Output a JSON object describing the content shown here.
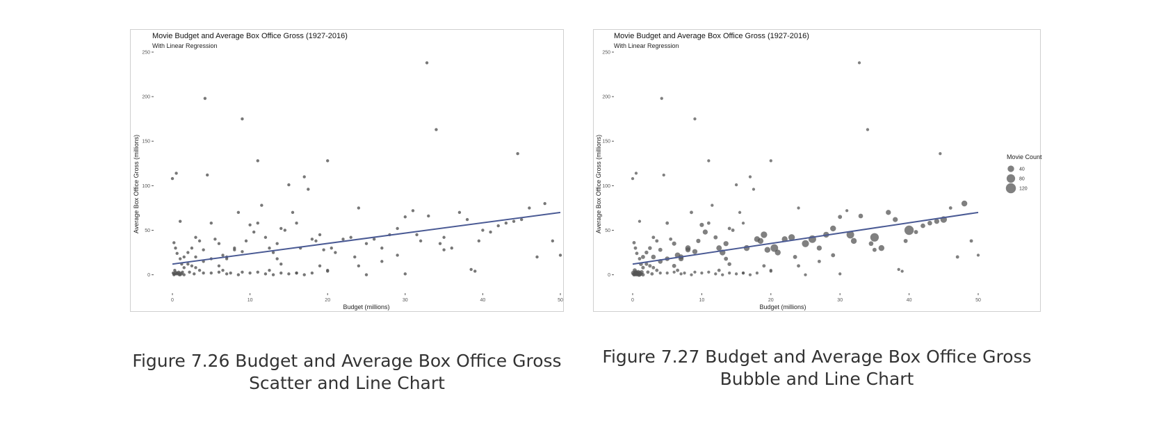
{
  "chart_data": [
    {
      "type": "scatter",
      "title": "Movie Budget and Average Box Office Gross (1927-2016)",
      "subtitle": "With Linear Regression",
      "xlabel": "Budget (millions)",
      "ylabel": "Average Box Office Gross (millions)",
      "xlim": [
        0,
        50
      ],
      "ylim": [
        -12,
        250
      ],
      "x_ticks": [
        0,
        10,
        20,
        30,
        40,
        50
      ],
      "y_ticks": [
        0,
        50,
        100,
        150,
        200,
        250
      ],
      "grid": false,
      "point_color": "#555555",
      "regression": {
        "x": [
          0,
          50
        ],
        "y": [
          12,
          70
        ],
        "color": "#4a5a94"
      },
      "points": [
        [
          0,
          108
        ],
        [
          0.5,
          114
        ],
        [
          1,
          60
        ],
        [
          0.2,
          36
        ],
        [
          0.4,
          30
        ],
        [
          0.6,
          24
        ],
        [
          1,
          18
        ],
        [
          1.2,
          12
        ],
        [
          1.5,
          8
        ],
        [
          0.3,
          5
        ],
        [
          0.1,
          2
        ],
        [
          0.5,
          1
        ],
        [
          0.8,
          3
        ],
        [
          1,
          0
        ],
        [
          0.2,
          0
        ],
        [
          2,
          25
        ],
        [
          2.5,
          30
        ],
        [
          3,
          42
        ],
        [
          3.5,
          38
        ],
        [
          4,
          28
        ],
        [
          2,
          12
        ],
        [
          2.5,
          10
        ],
        [
          3,
          8
        ],
        [
          3.5,
          5
        ],
        [
          4,
          2
        ],
        [
          1.5,
          20
        ],
        [
          4.2,
          198
        ],
        [
          4.5,
          112
        ],
        [
          5,
          58
        ],
        [
          5.5,
          40
        ],
        [
          6,
          35
        ],
        [
          6.5,
          22
        ],
        [
          7,
          18
        ],
        [
          7.5,
          2
        ],
        [
          8,
          28
        ],
        [
          8.5,
          70
        ],
        [
          9,
          175
        ],
        [
          9.5,
          38
        ],
        [
          10,
          56
        ],
        [
          10.5,
          48
        ],
        [
          11,
          128
        ],
        [
          11.5,
          78
        ],
        [
          11,
          58
        ],
        [
          12,
          42
        ],
        [
          12.5,
          30
        ],
        [
          13,
          25
        ],
        [
          13.5,
          35
        ],
        [
          14,
          52
        ],
        [
          14.5,
          50
        ],
        [
          15,
          101
        ],
        [
          15.5,
          70
        ],
        [
          16,
          58
        ],
        [
          16.5,
          30
        ],
        [
          17,
          110
        ],
        [
          17.5,
          96
        ],
        [
          18,
          40
        ],
        [
          18.5,
          38
        ],
        [
          19,
          45
        ],
        [
          19.5,
          28
        ],
        [
          20,
          128
        ],
        [
          20.5,
          30
        ],
        [
          21,
          25
        ],
        [
          22,
          40
        ],
        [
          23,
          42
        ],
        [
          23.5,
          20
        ],
        [
          24,
          75
        ],
        [
          25,
          35
        ],
        [
          26,
          40
        ],
        [
          27,
          30
        ],
        [
          28,
          45
        ],
        [
          29,
          52
        ],
        [
          30,
          65
        ],
        [
          31,
          72
        ],
        [
          31.5,
          45
        ],
        [
          32,
          38
        ],
        [
          32.8,
          238
        ],
        [
          33,
          66
        ],
        [
          34,
          163
        ],
        [
          34.5,
          35
        ],
        [
          35,
          42
        ],
        [
          36,
          30
        ],
        [
          37,
          70
        ],
        [
          38,
          62
        ],
        [
          38.5,
          6
        ],
        [
          39,
          4
        ],
        [
          39.5,
          38
        ],
        [
          40,
          50
        ],
        [
          41,
          48
        ],
        [
          42,
          55
        ],
        [
          43,
          58
        ],
        [
          44,
          60
        ],
        [
          44.5,
          136
        ],
        [
          45,
          62
        ],
        [
          46,
          75
        ],
        [
          47,
          20
        ],
        [
          48,
          80
        ],
        [
          49,
          38
        ],
        [
          50,
          22
        ],
        [
          5,
          2
        ],
        [
          6,
          3
        ],
        [
          7,
          1
        ],
        [
          8.5,
          0
        ],
        [
          9,
          3
        ],
        [
          10,
          2
        ],
        [
          12,
          1
        ],
        [
          13,
          0
        ],
        [
          14,
          2
        ],
        [
          15,
          1
        ],
        [
          16,
          2
        ],
        [
          17,
          0
        ],
        [
          20,
          4
        ],
        [
          25,
          0
        ],
        [
          30,
          1
        ],
        [
          20,
          5
        ],
        [
          8,
          30
        ],
        [
          9,
          26
        ],
        [
          7,
          20
        ],
        [
          6,
          10
        ],
        [
          5,
          18
        ],
        [
          3,
          20
        ],
        [
          4,
          15
        ],
        [
          6.5,
          5
        ],
        [
          2.2,
          3
        ],
        [
          2.8,
          1
        ],
        [
          11,
          3
        ],
        [
          12.5,
          5
        ],
        [
          18,
          2
        ],
        [
          24,
          10
        ],
        [
          27,
          15
        ],
        [
          29,
          22
        ],
        [
          35,
          28
        ],
        [
          19,
          10
        ],
        [
          16,
          2
        ],
        [
          13.5,
          18
        ],
        [
          14,
          12
        ],
        [
          0.3,
          1
        ],
        [
          0.6,
          2
        ],
        [
          0.9,
          0
        ],
        [
          1.2,
          1
        ],
        [
          1.5,
          0
        ],
        [
          0.4,
          3
        ],
        [
          0.7,
          1
        ],
        [
          1,
          2
        ],
        [
          0.2,
          1
        ],
        [
          1.3,
          3
        ]
      ]
    },
    {
      "type": "scatter",
      "title": "Movie Budget and Average Box Office Gross (1927-2016)",
      "subtitle": "With Linear Regression",
      "xlabel": "Budget (millions)",
      "ylabel": "Average Box Office Gross (millions)",
      "xlim": [
        0,
        50
      ],
      "ylim": [
        -12,
        250
      ],
      "x_ticks": [
        0,
        10,
        20,
        30,
        40,
        50
      ],
      "y_ticks": [
        0,
        50,
        100,
        150,
        200,
        250
      ],
      "grid": false,
      "point_color": "#555555",
      "size_legend": {
        "title": "Movie Count",
        "values": [
          40,
          80,
          120
        ]
      },
      "regression": {
        "x": [
          0,
          50
        ],
        "y": [
          12,
          70
        ],
        "color": "#4a5a94"
      },
      "points": [
        [
          0,
          108,
          3
        ],
        [
          0.5,
          114,
          3
        ],
        [
          1,
          60,
          3
        ],
        [
          0.2,
          36,
          5
        ],
        [
          0.4,
          30,
          5
        ],
        [
          0.6,
          24,
          5
        ],
        [
          1,
          18,
          5
        ],
        [
          1.2,
          12,
          8
        ],
        [
          1.5,
          8,
          6
        ],
        [
          0.3,
          5,
          10
        ],
        [
          0.1,
          2,
          15
        ],
        [
          0.5,
          1,
          20
        ],
        [
          0.8,
          3,
          12
        ],
        [
          1,
          0,
          8
        ],
        [
          0.2,
          0,
          6
        ],
        [
          2,
          25,
          8
        ],
        [
          2.5,
          30,
          8
        ],
        [
          3,
          42,
          5
        ],
        [
          3.5,
          38,
          5
        ],
        [
          4,
          28,
          10
        ],
        [
          2,
          12,
          6
        ],
        [
          2.5,
          10,
          6
        ],
        [
          3,
          8,
          5
        ],
        [
          3.5,
          5,
          5
        ],
        [
          4,
          2,
          3
        ],
        [
          1.5,
          20,
          10
        ],
        [
          4.2,
          198,
          3
        ],
        [
          4.5,
          112,
          3
        ],
        [
          5,
          58,
          5
        ],
        [
          5.5,
          40,
          5
        ],
        [
          6,
          35,
          12
        ],
        [
          6.5,
          22,
          25
        ],
        [
          7,
          18,
          20
        ],
        [
          7.5,
          2,
          3
        ],
        [
          8,
          28,
          20
        ],
        [
          8.5,
          70,
          5
        ],
        [
          9,
          175,
          3
        ],
        [
          9.5,
          38,
          12
        ],
        [
          10,
          56,
          12
        ],
        [
          10.5,
          48,
          20
        ],
        [
          11,
          128,
          3
        ],
        [
          11.5,
          78,
          3
        ],
        [
          11,
          58,
          5
        ],
        [
          12,
          42,
          10
        ],
        [
          12.5,
          30,
          25
        ],
        [
          13,
          25,
          30
        ],
        [
          13.5,
          35,
          20
        ],
        [
          14,
          52,
          5
        ],
        [
          14.5,
          50,
          5
        ],
        [
          15,
          101,
          3
        ],
        [
          15.5,
          70,
          3
        ],
        [
          16,
          58,
          3
        ],
        [
          16.5,
          30,
          30
        ],
        [
          17,
          110,
          3
        ],
        [
          17.5,
          96,
          3
        ],
        [
          18,
          40,
          30
        ],
        [
          18.5,
          38,
          30
        ],
        [
          19,
          45,
          40
        ],
        [
          19.5,
          28,
          30
        ],
        [
          20,
          128,
          3
        ],
        [
          20.5,
          30,
          60
        ],
        [
          21,
          25,
          30
        ],
        [
          22,
          40,
          30
        ],
        [
          23,
          42,
          40
        ],
        [
          23.5,
          20,
          10
        ],
        [
          24,
          75,
          3
        ],
        [
          25,
          35,
          50
        ],
        [
          26,
          40,
          60
        ],
        [
          27,
          30,
          20
        ],
        [
          28,
          45,
          30
        ],
        [
          29,
          52,
          30
        ],
        [
          30,
          65,
          10
        ],
        [
          31,
          72,
          3
        ],
        [
          31.5,
          45,
          60
        ],
        [
          32,
          38,
          30
        ],
        [
          32.8,
          238,
          3
        ],
        [
          33,
          66,
          15
        ],
        [
          34,
          163,
          3
        ],
        [
          34.5,
          35,
          15
        ],
        [
          35,
          42,
          80
        ],
        [
          36,
          30,
          30
        ],
        [
          37,
          70,
          20
        ],
        [
          38,
          62,
          20
        ],
        [
          38.5,
          6,
          3
        ],
        [
          39,
          4,
          3
        ],
        [
          39.5,
          38,
          10
        ],
        [
          40,
          50,
          100
        ],
        [
          41,
          48,
          10
        ],
        [
          42,
          55,
          15
        ],
        [
          43,
          58,
          15
        ],
        [
          44,
          60,
          20
        ],
        [
          44.5,
          136,
          3
        ],
        [
          45,
          62,
          40
        ],
        [
          46,
          75,
          5
        ],
        [
          47,
          20,
          5
        ],
        [
          48,
          80,
          30
        ],
        [
          49,
          38,
          5
        ],
        [
          50,
          22,
          3
        ],
        [
          5,
          2,
          3
        ],
        [
          6,
          3,
          3
        ],
        [
          7,
          1,
          3
        ],
        [
          8.5,
          0,
          3
        ],
        [
          9,
          3,
          3
        ],
        [
          10,
          2,
          3
        ],
        [
          12,
          1,
          3
        ],
        [
          13,
          0,
          3
        ],
        [
          14,
          2,
          3
        ],
        [
          15,
          1,
          3
        ],
        [
          16,
          2,
          3
        ],
        [
          17,
          0,
          3
        ],
        [
          20,
          4,
          3
        ],
        [
          25,
          0,
          3
        ],
        [
          30,
          1,
          3
        ],
        [
          20,
          5,
          3
        ],
        [
          8,
          30,
          25
        ],
        [
          9,
          26,
          20
        ],
        [
          7,
          20,
          20
        ],
        [
          6,
          10,
          10
        ],
        [
          5,
          18,
          15
        ],
        [
          3,
          20,
          15
        ],
        [
          4,
          15,
          15
        ],
        [
          6.5,
          5,
          5
        ],
        [
          2.2,
          3,
          5
        ],
        [
          2.8,
          1,
          5
        ],
        [
          11,
          3,
          3
        ],
        [
          12.5,
          5,
          5
        ],
        [
          18,
          2,
          3
        ],
        [
          24,
          10,
          5
        ],
        [
          27,
          15,
          5
        ],
        [
          29,
          22,
          10
        ],
        [
          35,
          28,
          10
        ],
        [
          19,
          10,
          5
        ],
        [
          16,
          2,
          3
        ],
        [
          13.5,
          18,
          10
        ],
        [
          14,
          12,
          8
        ],
        [
          0.3,
          1,
          12
        ],
        [
          0.6,
          2,
          15
        ],
        [
          0.9,
          0,
          10
        ],
        [
          1.2,
          1,
          8
        ],
        [
          1.5,
          0,
          6
        ],
        [
          0.4,
          3,
          10
        ],
        [
          0.7,
          1,
          15
        ],
        [
          1,
          2,
          12
        ],
        [
          0.2,
          1,
          8
        ],
        [
          1.3,
          3,
          10
        ]
      ]
    }
  ],
  "captions": [
    "Figure 7.26 Budget and Average Box Office Gross Scatter and Line Chart",
    "Figure 7.27 Budget and Average Box Office Gross Bubble and Line Chart"
  ]
}
